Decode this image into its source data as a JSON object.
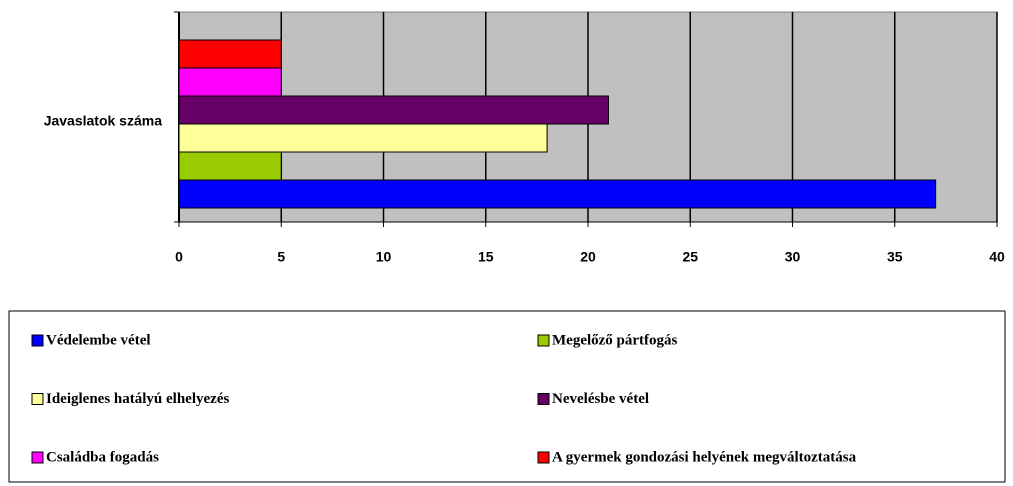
{
  "chart_data": {
    "type": "hbar",
    "categories": [
      "Javaslatok száma"
    ],
    "series": [
      {
        "name": "Védelembe vétel",
        "color": "#0000ff",
        "values": [
          37
        ]
      },
      {
        "name": "Megelőző pártfogás",
        "color": "#99cc00",
        "values": [
          5
        ]
      },
      {
        "name": "Ideiglenes hatályú elhelyezés",
        "color": "#ffff99",
        "values": [
          18
        ]
      },
      {
        "name": "Nevelésbe vétel",
        "color": "#660066",
        "values": [
          21
        ]
      },
      {
        "name": "Családba fogadás",
        "color": "#ff00ff",
        "values": [
          5
        ]
      },
      {
        "name": "A gyermek gondozási helyének megváltoztatása",
        "color": "#ff0000",
        "values": [
          5
        ]
      }
    ],
    "xlim": [
      0,
      40
    ],
    "xticks": [
      0,
      5,
      10,
      15,
      20,
      25,
      30,
      35,
      40
    ],
    "grid": true,
    "legend": "bottom"
  }
}
